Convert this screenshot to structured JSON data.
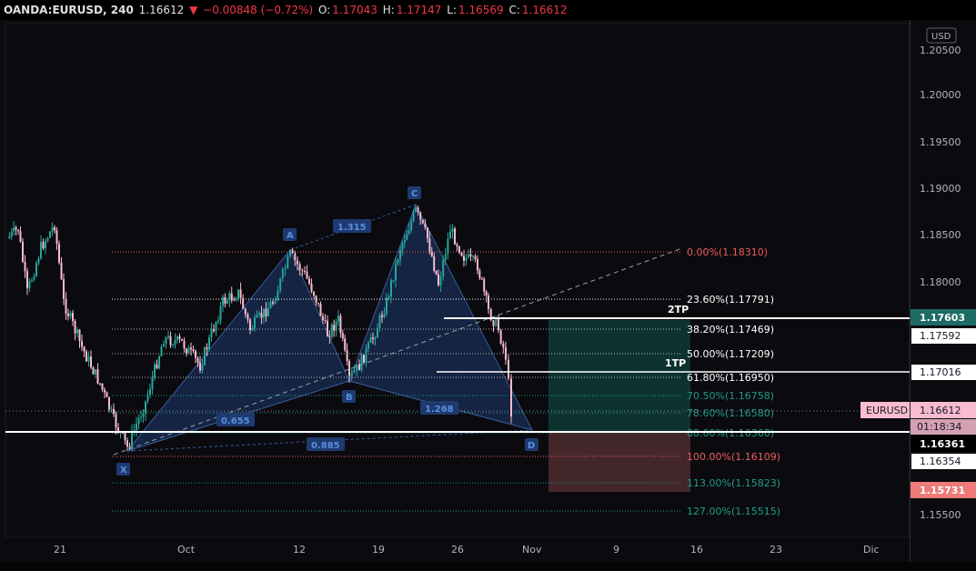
{
  "header": {
    "symbol": "OANDA:EURUSD, 240",
    "last": "1.16612",
    "change": "−0.00848 (−0.72%)",
    "o_label": "O:",
    "o_value": "1.17043",
    "h_label": "H:",
    "h_value": "1.17147",
    "l_label": "L:",
    "l_value": "1.16569",
    "c_label": "C:",
    "c_value": "1.16612"
  },
  "currency_button": "USD",
  "price_axis": {
    "ticks": [
      "1.20500",
      "1.20000",
      "1.19500",
      "1.19000",
      "1.18500",
      "1.18000",
      "1.15500"
    ]
  },
  "time_axis": {
    "ticks": [
      "21",
      "Oct",
      "12",
      "19",
      "26",
      "Nov",
      "9",
      "16",
      "23",
      "Dic"
    ]
  },
  "fib_levels": [
    {
      "label": "0.00%(1.18310)",
      "color": "#f15c5c"
    },
    {
      "label": "23.60%(1.17791)",
      "color": "#ffffff"
    },
    {
      "label": "38.20%(1.17469)",
      "color": "#ffffff"
    },
    {
      "label": "50.00%(1.17209)",
      "color": "#ffffff"
    },
    {
      "label": "61.80%(1.16950)",
      "color": "#ffffff"
    },
    {
      "label": "70.50%(1.16758)",
      "color": "#1e9c8c"
    },
    {
      "label": "78.60%(1.16580)",
      "color": "#1e9c8c"
    },
    {
      "label": "88.60%(1.16360)",
      "color": "#1e9c8c"
    },
    {
      "label": "100.00%(1.16109)",
      "color": "#f15c5c"
    },
    {
      "label": "113.00%(1.15823)",
      "color": "#1e9c8c"
    },
    {
      "label": "127.00%(1.15515)",
      "color": "#1e9c8c"
    }
  ],
  "pattern": {
    "points": [
      "X",
      "A",
      "B",
      "C",
      "D"
    ],
    "ratios": [
      "1.315",
      "0.655",
      "1.268",
      "0.885"
    ]
  },
  "targets": {
    "tp2": "2TP",
    "tp1": "1TP"
  },
  "price_labels": {
    "tp2": "1.17603",
    "p1": "1.17592",
    "tp1": "1.17016",
    "symbol_name": "EURUSD",
    "current": "1.16612",
    "countdown": "01:18:34",
    "entry": "1.16361",
    "p2": "1.16354",
    "stop": "1.15731"
  },
  "colors": {
    "bull": "#26a69a",
    "bear": "#f8bbd0",
    "pattern_fill": "#1e3a6e",
    "profit_zone": "#0e3b36",
    "loss_zone": "#4a2a2e"
  }
}
